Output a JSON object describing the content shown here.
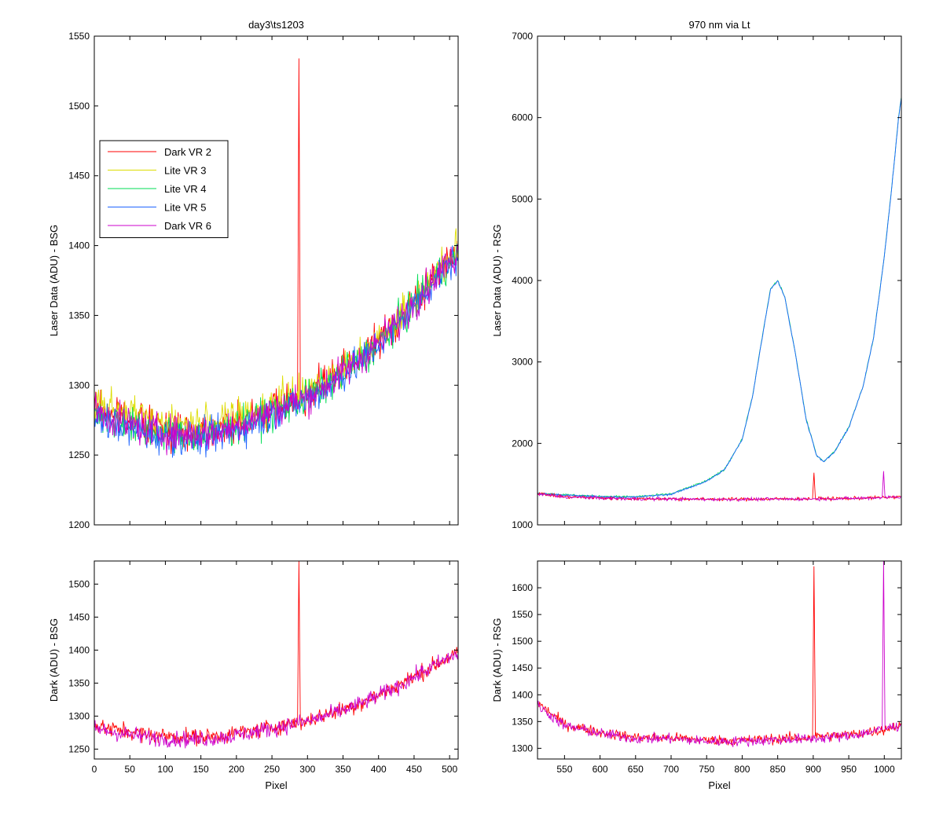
{
  "figure": {
    "background": "#ffffff"
  },
  "chart_data": [
    {
      "id": "bsg_laser",
      "type": "line",
      "title": "day3\\ts1203",
      "xlabel": "",
      "ylabel": "Laser Data (ADU) - BSG",
      "xlim": [
        0,
        512
      ],
      "ylim": [
        1200,
        1550
      ],
      "xticks": [
        50,
        100,
        150,
        200,
        250,
        300,
        350,
        400,
        450,
        500
      ],
      "yticks": [
        1200,
        1250,
        1300,
        1350,
        1400,
        1450,
        1500,
        1550
      ],
      "show_xtick_labels": false,
      "legend": {
        "placement": "upper-left",
        "entries": [
          "Dark VR 2",
          "Lite VR 3",
          "Lite VR 4",
          "Lite VR 5",
          "Dark VR 6"
        ]
      },
      "series": [
        {
          "name": "Dark VR 2",
          "color": "#ff0000",
          "x": [
            0,
            25,
            50,
            75,
            100,
            125,
            150,
            175,
            200,
            225,
            250,
            275,
            286,
            288,
            290,
            300,
            325,
            350,
            375,
            400,
            425,
            450,
            475,
            500,
            512
          ],
          "values": [
            1285,
            1280,
            1277,
            1272,
            1270,
            1269,
            1268,
            1270,
            1274,
            1278,
            1283,
            1289,
            1289,
            1534,
            1291,
            1293,
            1302,
            1310,
            1320,
            1332,
            1345,
            1360,
            1375,
            1390,
            1395
          ]
        },
        {
          "name": "Lite VR 3",
          "color": "#dddd00",
          "x": [
            0,
            25,
            50,
            75,
            100,
            125,
            150,
            175,
            200,
            225,
            250,
            275,
            300,
            325,
            350,
            375,
            400,
            425,
            450,
            475,
            500,
            512
          ],
          "values": [
            1290,
            1285,
            1280,
            1276,
            1274,
            1273,
            1272,
            1274,
            1277,
            1281,
            1286,
            1292,
            1296,
            1304,
            1312,
            1322,
            1334,
            1347,
            1362,
            1377,
            1392,
            1397
          ]
        },
        {
          "name": "Lite VR 4",
          "color": "#00dd55",
          "x": [
            0,
            25,
            50,
            75,
            100,
            125,
            150,
            175,
            200,
            225,
            250,
            275,
            300,
            325,
            350,
            375,
            400,
            425,
            450,
            475,
            500,
            512
          ],
          "values": [
            1280,
            1275,
            1271,
            1267,
            1265,
            1264,
            1264,
            1266,
            1270,
            1275,
            1280,
            1286,
            1291,
            1299,
            1308,
            1318,
            1330,
            1343,
            1358,
            1373,
            1388,
            1393
          ]
        },
        {
          "name": "Lite VR 5",
          "color": "#1e64ff",
          "x": [
            0,
            25,
            50,
            75,
            100,
            125,
            150,
            175,
            200,
            225,
            250,
            275,
            300,
            325,
            350,
            375,
            400,
            425,
            450,
            475,
            500,
            512
          ],
          "values": [
            1278,
            1273,
            1269,
            1265,
            1263,
            1262,
            1262,
            1264,
            1268,
            1273,
            1279,
            1285,
            1290,
            1298,
            1307,
            1317,
            1329,
            1342,
            1357,
            1372,
            1387,
            1392
          ]
        },
        {
          "name": "Dark VR 6",
          "color": "#cc00cc",
          "x": [
            0,
            25,
            50,
            75,
            100,
            125,
            150,
            175,
            200,
            225,
            250,
            275,
            300,
            325,
            350,
            375,
            400,
            425,
            450,
            475,
            500,
            512
          ],
          "values": [
            1281,
            1276,
            1272,
            1268,
            1266,
            1265,
            1265,
            1267,
            1271,
            1276,
            1281,
            1287,
            1292,
            1300,
            1309,
            1319,
            1331,
            1344,
            1359,
            1374,
            1389,
            1394
          ]
        }
      ]
    },
    {
      "id": "rsg_laser",
      "type": "line",
      "title": "970 nm via Lt",
      "xlabel": "",
      "ylabel": "Laser Data (ADU) - RSG",
      "xlim": [
        512,
        1024
      ],
      "ylim": [
        1000,
        7000
      ],
      "xticks": [
        550,
        600,
        650,
        700,
        750,
        800,
        850,
        900,
        950,
        1000
      ],
      "yticks": [
        1000,
        2000,
        3000,
        4000,
        5000,
        6000,
        7000
      ],
      "show_xtick_labels": false,
      "series": [
        {
          "name": "",
          "color": "#00dd55",
          "x": [
            512,
            550,
            600,
            650,
            700,
            750,
            775,
            800,
            815,
            830,
            840,
            850,
            860,
            875,
            890,
            905,
            915,
            930,
            950,
            970,
            985,
            1000,
            1010,
            1020,
            1024
          ],
          "values": [
            1390,
            1370,
            1350,
            1345,
            1380,
            1540,
            1680,
            2050,
            2600,
            3400,
            3900,
            4000,
            3800,
            3100,
            2300,
            1850,
            1780,
            1900,
            2200,
            2700,
            3300,
            4300,
            5100,
            6000,
            6250
          ]
        },
        {
          "name": "",
          "color": "#1e64ff",
          "x": [
            512,
            550,
            600,
            650,
            700,
            750,
            775,
            800,
            815,
            830,
            840,
            850,
            860,
            875,
            890,
            905,
            915,
            930,
            950,
            970,
            985,
            1000,
            1010,
            1020,
            1024
          ],
          "values": [
            1385,
            1365,
            1345,
            1340,
            1375,
            1535,
            1675,
            2045,
            2595,
            3395,
            3895,
            3995,
            3795,
            3095,
            2295,
            1845,
            1775,
            1895,
            2195,
            2695,
            3295,
            4295,
            5095,
            5995,
            6245
          ]
        },
        {
          "name": "",
          "color": "#ff0000",
          "x": [
            512,
            550,
            600,
            650,
            700,
            750,
            800,
            850,
            899,
            901,
            903,
            950,
            1000,
            1024
          ],
          "values": [
            1385,
            1345,
            1330,
            1320,
            1320,
            1315,
            1315,
            1318,
            1320,
            1640,
            1322,
            1325,
            1335,
            1345
          ]
        },
        {
          "name": "",
          "color": "#cc00cc",
          "x": [
            512,
            550,
            600,
            650,
            700,
            750,
            800,
            850,
            900,
            950,
            997,
            999,
            1001,
            1024
          ],
          "values": [
            1380,
            1342,
            1328,
            1318,
            1318,
            1313,
            1313,
            1316,
            1318,
            1323,
            1335,
            1660,
            1337,
            1343
          ]
        }
      ]
    },
    {
      "id": "bsg_dark",
      "type": "line",
      "title": "",
      "xlabel": "Pixel",
      "ylabel": "Dark (ADU) - BSG",
      "xlim": [
        0,
        512
      ],
      "ylim": [
        1235,
        1535
      ],
      "xticks": [
        0,
        50,
        100,
        150,
        200,
        250,
        300,
        350,
        400,
        450,
        500
      ],
      "yticks": [
        1250,
        1300,
        1350,
        1400,
        1450,
        1500
      ],
      "show_xtick_labels": true,
      "series": [
        {
          "name": "",
          "color": "#ff0000",
          "x": [
            0,
            25,
            50,
            75,
            100,
            125,
            150,
            175,
            200,
            225,
            250,
            275,
            286,
            288,
            290,
            300,
            325,
            350,
            375,
            400,
            425,
            450,
            475,
            500,
            512
          ],
          "values": [
            1285,
            1280,
            1277,
            1272,
            1270,
            1269,
            1268,
            1270,
            1274,
            1278,
            1283,
            1289,
            1289,
            1535,
            1291,
            1293,
            1302,
            1310,
            1320,
            1332,
            1345,
            1360,
            1375,
            1390,
            1395
          ]
        },
        {
          "name": "",
          "color": "#cc00cc",
          "x": [
            0,
            25,
            50,
            75,
            100,
            125,
            150,
            175,
            200,
            225,
            250,
            275,
            300,
            325,
            350,
            375,
            400,
            425,
            450,
            475,
            500,
            512
          ],
          "values": [
            1281,
            1276,
            1272,
            1268,
            1266,
            1265,
            1265,
            1267,
            1271,
            1276,
            1281,
            1287,
            1292,
            1300,
            1309,
            1319,
            1331,
            1344,
            1359,
            1374,
            1389,
            1394
          ]
        }
      ]
    },
    {
      "id": "rsg_dark",
      "type": "line",
      "title": "",
      "xlabel": "Pixel",
      "ylabel": "Dark (ADU) - RSG",
      "xlim": [
        512,
        1024
      ],
      "ylim": [
        1280,
        1650
      ],
      "xticks": [
        550,
        600,
        650,
        700,
        750,
        800,
        850,
        900,
        950,
        1000
      ],
      "yticks": [
        1300,
        1350,
        1400,
        1450,
        1500,
        1550,
        1600
      ],
      "show_xtick_labels": true,
      "series": [
        {
          "name": "",
          "color": "#ff0000",
          "x": [
            512,
            550,
            600,
            650,
            700,
            750,
            800,
            850,
            899,
            901,
            903,
            950,
            1000,
            1024
          ],
          "values": [
            1385,
            1345,
            1330,
            1320,
            1320,
            1315,
            1315,
            1318,
            1320,
            1640,
            1322,
            1325,
            1335,
            1345
          ]
        },
        {
          "name": "",
          "color": "#cc00cc",
          "x": [
            512,
            550,
            600,
            650,
            700,
            750,
            800,
            850,
            900,
            950,
            997,
            999,
            1001,
            1024
          ],
          "values": [
            1380,
            1342,
            1328,
            1318,
            1318,
            1313,
            1313,
            1316,
            1318,
            1323,
            1335,
            1650,
            1337,
            1343
          ]
        }
      ]
    }
  ]
}
